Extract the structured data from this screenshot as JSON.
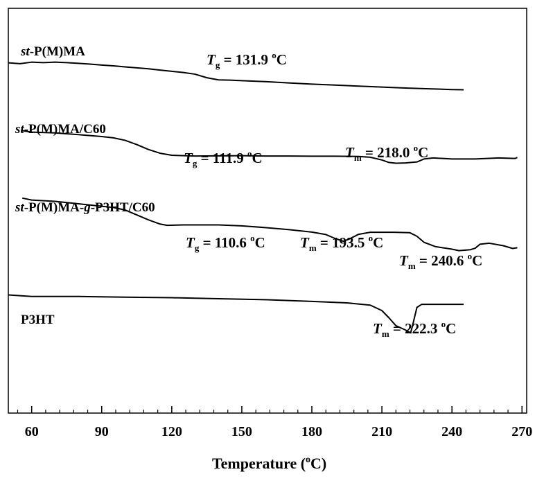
{
  "chart_data": {
    "type": "line",
    "title": "",
    "xlabel": "Temperature (°C)",
    "xlabel_main": "Temperature (",
    "xlabel_sup": "o",
    "xlabel_end": "C)",
    "ylabel": "",
    "xlim": [
      50,
      272
    ],
    "xticks": [
      60,
      90,
      120,
      150,
      180,
      210,
      240,
      270
    ],
    "grid": false,
    "series": [
      {
        "name": "st-P(M)MA",
        "name_italic": "st",
        "name_rest": "-P(M)MA",
        "color": "#000000",
        "points": [
          [
            50,
            -0.06
          ],
          [
            55,
            -0.17
          ],
          [
            60,
            0.03
          ],
          [
            65,
            -0.03
          ],
          [
            70,
            0.03
          ],
          [
            75,
            -0.03
          ],
          [
            80,
            -0.13
          ],
          [
            85,
            -0.23
          ],
          [
            90,
            -0.36
          ],
          [
            95,
            -0.46
          ],
          [
            100,
            -0.6
          ],
          [
            105,
            -0.73
          ],
          [
            110,
            -0.86
          ],
          [
            115,
            -1.03
          ],
          [
            120,
            -1.19
          ],
          [
            125,
            -1.35
          ],
          [
            130,
            -1.58
          ],
          [
            135,
            -2.05
          ],
          [
            140,
            -2.34
          ],
          [
            145,
            -2.37
          ],
          [
            150,
            -2.44
          ],
          [
            160,
            -2.57
          ],
          [
            170,
            -2.74
          ],
          [
            180,
            -2.9
          ],
          [
            190,
            -3.03
          ],
          [
            200,
            -3.17
          ],
          [
            210,
            -3.3
          ],
          [
            220,
            -3.43
          ],
          [
            230,
            -3.53
          ],
          [
            240,
            -3.63
          ],
          [
            245,
            -3.66
          ]
        ]
      },
      {
        "name": "st-P(M)MA/C60",
        "name_italic": "st",
        "name_rest": "-P(M)MA/C60",
        "color": "#000000",
        "points": [
          [
            56,
            -9.12
          ],
          [
            60,
            -9.32
          ],
          [
            70,
            -9.42
          ],
          [
            80,
            -9.65
          ],
          [
            90,
            -9.91
          ],
          [
            95,
            -10.08
          ],
          [
            100,
            -10.41
          ],
          [
            105,
            -10.98
          ],
          [
            110,
            -11.64
          ],
          [
            115,
            -12.14
          ],
          [
            120,
            -12.41
          ],
          [
            130,
            -12.51
          ],
          [
            150,
            -12.47
          ],
          [
            160,
            -12.51
          ],
          [
            170,
            -12.51
          ],
          [
            180,
            -12.54
          ],
          [
            190,
            -12.54
          ],
          [
            200,
            -12.57
          ],
          [
            205,
            -12.67
          ],
          [
            210,
            -13.04
          ],
          [
            213,
            -13.37
          ],
          [
            216,
            -13.47
          ],
          [
            220,
            -13.44
          ],
          [
            225,
            -13.3
          ],
          [
            228,
            -12.91
          ],
          [
            232,
            -12.77
          ],
          [
            240,
            -12.9
          ],
          [
            250,
            -12.9
          ],
          [
            260,
            -12.77
          ],
          [
            267,
            -12.84
          ],
          [
            268,
            -12.7
          ]
        ]
      },
      {
        "name": "st-P(M)MA-g-P3HT/C60",
        "name_italic1": "st",
        "name_mid": "-P(M)MA-",
        "name_italic2": "g",
        "name_rest": "-P3HT/C60",
        "color": "#000000",
        "points": [
          [
            56,
            -18.13
          ],
          [
            60,
            -18.39
          ],
          [
            70,
            -18.56
          ],
          [
            80,
            -18.89
          ],
          [
            90,
            -19.22
          ],
          [
            95,
            -19.39
          ],
          [
            100,
            -19.72
          ],
          [
            105,
            -20.38
          ],
          [
            110,
            -21.04
          ],
          [
            115,
            -21.6
          ],
          [
            118,
            -21.77
          ],
          [
            125,
            -21.71
          ],
          [
            140,
            -21.71
          ],
          [
            150,
            -21.84
          ],
          [
            160,
            -22.07
          ],
          [
            170,
            -22.34
          ],
          [
            180,
            -22.67
          ],
          [
            186,
            -23.0
          ],
          [
            190,
            -23.53
          ],
          [
            193.5,
            -23.9
          ],
          [
            196,
            -23.6
          ],
          [
            200,
            -22.97
          ],
          [
            205,
            -22.7
          ],
          [
            215,
            -22.7
          ],
          [
            222,
            -22.76
          ],
          [
            225,
            -23.23
          ],
          [
            228,
            -24.03
          ],
          [
            233,
            -24.62
          ],
          [
            240,
            -24.95
          ],
          [
            243,
            -25.15
          ],
          [
            248,
            -25.02
          ],
          [
            250,
            -24.82
          ],
          [
            252,
            -24.29
          ],
          [
            256,
            -24.16
          ],
          [
            262,
            -24.49
          ],
          [
            266,
            -24.86
          ],
          [
            268,
            -24.76
          ]
        ]
      },
      {
        "name": "P3HT",
        "name_italic": "",
        "name_rest": "P3HT",
        "color": "#000000",
        "points": [
          [
            50,
            -31.07
          ],
          [
            60,
            -31.27
          ],
          [
            80,
            -31.27
          ],
          [
            100,
            -31.37
          ],
          [
            120,
            -31.44
          ],
          [
            140,
            -31.57
          ],
          [
            160,
            -31.7
          ],
          [
            180,
            -31.93
          ],
          [
            195,
            -32.13
          ],
          [
            205,
            -32.43
          ],
          [
            210,
            -33.16
          ],
          [
            213,
            -34.12
          ],
          [
            216,
            -35.18
          ],
          [
            220,
            -35.74
          ],
          [
            222.3,
            -36.14
          ],
          [
            223,
            -35.31
          ],
          [
            225,
            -32.73
          ],
          [
            227,
            -32.33
          ],
          [
            235,
            -32.33
          ],
          [
            245,
            -32.33
          ]
        ]
      }
    ],
    "annotations": [
      {
        "sym": "T",
        "sub": "g",
        "text": " = 131.9 ",
        "sup": "o",
        "unit": "C",
        "color": "#e8222a"
      },
      {
        "sym": "T",
        "sub": "g",
        "text": " = 111.9 ",
        "sup": "o",
        "unit": "C",
        "color": "#e8222a"
      },
      {
        "sym": "T",
        "sub": "m",
        "text": " = 218.0 ",
        "sup": "o",
        "unit": "C",
        "color": "#1e2a80"
      },
      {
        "sym": "T",
        "sub": "g",
        "text": " = 110.6 ",
        "sup": "o",
        "unit": "C",
        "color": "#e8222a"
      },
      {
        "sym": "T",
        "sub": "m",
        "text": " = 193.5 ",
        "sup": "o",
        "unit": "C",
        "color": "#1e2a80"
      },
      {
        "sym": "T",
        "sub": "m",
        "text": " = 240.6 ",
        "sup": "o",
        "unit": "C",
        "color": "#1e2a80"
      },
      {
        "sym": "T",
        "sub": "m",
        "text": " = 222.3 ",
        "sup": "o",
        "unit": "C",
        "color": "#1e2a80"
      }
    ]
  }
}
